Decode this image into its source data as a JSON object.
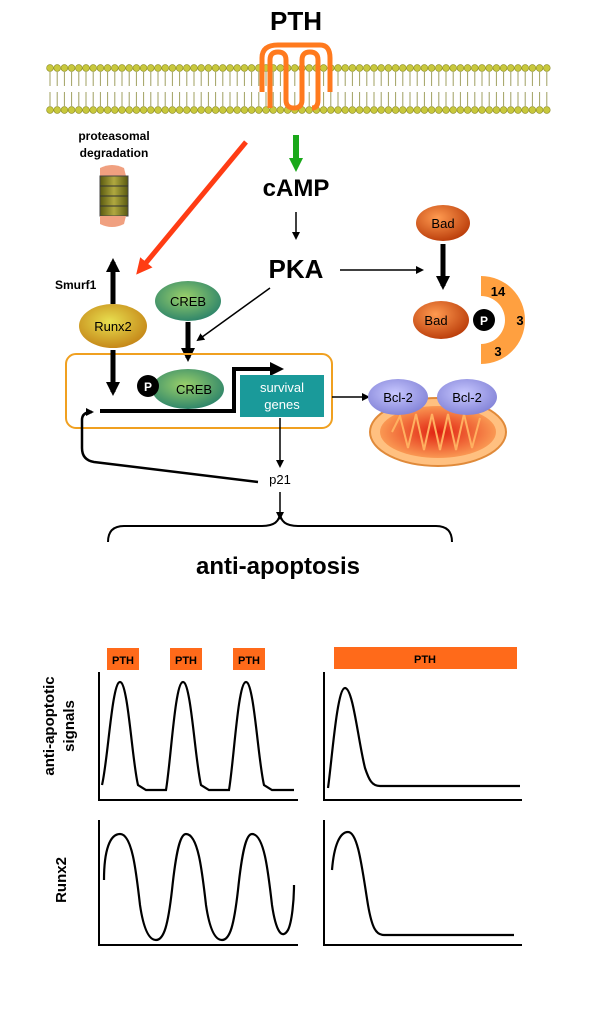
{
  "colors": {
    "membrane_head": "#c8c83c",
    "receptor": "#ff7a1e",
    "red_arrow": "#ff3c14",
    "green_arrow": "#1aa81a",
    "nucleus_border": "#f0a020",
    "survival_box": "#1a9a9a",
    "bcl2": "#9a9ae6",
    "mito": "#ff8a3c",
    "bad": "#d24a10",
    "fourteen33": "#ffa040",
    "creb": "#2e9a5a",
    "runx2": "#c8c828",
    "pth_box": "#ff6a1a"
  },
  "labels": {
    "pth_top": "PTH",
    "proteasomal": "proteasomal",
    "degradation": "degradation",
    "camp": "cAMP",
    "pka": "PKA",
    "bad": "Bad",
    "bad_p": "Bad",
    "p": "P",
    "p_creb": "P",
    "fourteen": "14",
    "three_a": "3",
    "three_b": "3",
    "smurf1": "Smurf1",
    "runx2": "Runx2",
    "creb": "CREB",
    "creb_nuc": "CREB",
    "survival": "survival",
    "genes": "genes",
    "bcl2_a": "Bcl-2",
    "bcl2_b": "Bcl-2",
    "p21": "p21",
    "anti_apoptosis": "anti-apoptosis"
  },
  "plots": {
    "ylabel_top_1": "anti-apoptotic",
    "ylabel_top_2": "signals",
    "ylabel_bottom": "Runx2",
    "pth_pulses": [
      "PTH",
      "PTH",
      "PTH"
    ],
    "pth_continuous": "PTH"
  }
}
